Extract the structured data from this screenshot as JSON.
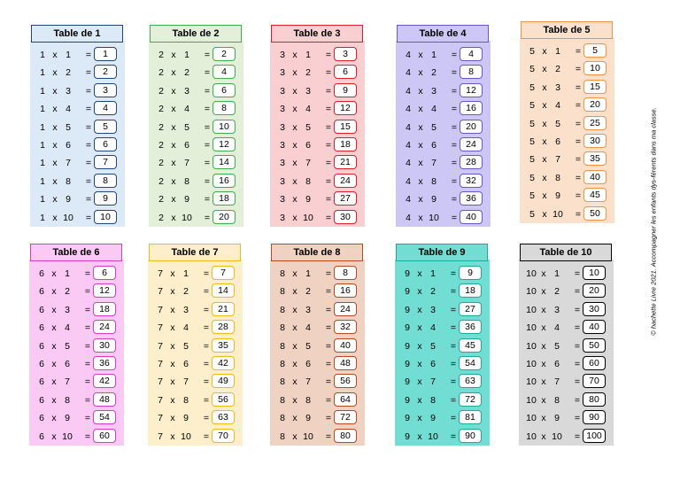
{
  "tables": [
    {
      "title": "Table de 1",
      "bg": "#dce9f6",
      "border": "#24427d",
      "headbg": "#dce9f6",
      "rows": [
        [
          "1",
          "1",
          "1"
        ],
        [
          "1",
          "2",
          "2"
        ],
        [
          "1",
          "3",
          "3"
        ],
        [
          "1",
          "4",
          "4"
        ],
        [
          "1",
          "5",
          "5"
        ],
        [
          "1",
          "6",
          "6"
        ],
        [
          "1",
          "7",
          "7"
        ],
        [
          "1",
          "8",
          "8"
        ],
        [
          "1",
          "9",
          "9"
        ],
        [
          "1",
          "10",
          "10"
        ]
      ]
    },
    {
      "title": "Table de 2",
      "bg": "#e3efd9",
      "border": "#3fae4a",
      "headbg": "#e3efd9",
      "rows": [
        [
          "2",
          "1",
          "2"
        ],
        [
          "2",
          "2",
          "4"
        ],
        [
          "2",
          "3",
          "6"
        ],
        [
          "2",
          "4",
          "8"
        ],
        [
          "2",
          "5",
          "10"
        ],
        [
          "2",
          "6",
          "12"
        ],
        [
          "2",
          "7",
          "14"
        ],
        [
          "2",
          "8",
          "16"
        ],
        [
          "2",
          "9",
          "18"
        ],
        [
          "2",
          "10",
          "20"
        ]
      ]
    },
    {
      "title": "Table de 3",
      "bg": "#f9cfd2",
      "border": "#e01b2b",
      "headbg": "#f9cfd2",
      "rows": [
        [
          "3",
          "1",
          "3"
        ],
        [
          "3",
          "2",
          "6"
        ],
        [
          "3",
          "3",
          "9"
        ],
        [
          "3",
          "4",
          "12"
        ],
        [
          "3",
          "5",
          "15"
        ],
        [
          "3",
          "6",
          "18"
        ],
        [
          "3",
          "7",
          "21"
        ],
        [
          "3",
          "8",
          "24"
        ],
        [
          "3",
          "9",
          "27"
        ],
        [
          "3",
          "10",
          "30"
        ]
      ]
    },
    {
      "title": "Table de 4",
      "bg": "#cdc7f5",
      "border": "#6a56c8",
      "headbg": "#cdc7f5",
      "rows": [
        [
          "4",
          "1",
          "4"
        ],
        [
          "4",
          "2",
          "8"
        ],
        [
          "4",
          "3",
          "12"
        ],
        [
          "4",
          "4",
          "16"
        ],
        [
          "4",
          "5",
          "20"
        ],
        [
          "4",
          "6",
          "24"
        ],
        [
          "4",
          "7",
          "28"
        ],
        [
          "4",
          "8",
          "32"
        ],
        [
          "4",
          "9",
          "36"
        ],
        [
          "4",
          "10",
          "40"
        ]
      ]
    },
    {
      "title": "Table de 5",
      "bg": "#fbe0cb",
      "border": "#f29247",
      "headbg": "#fbe0cb",
      "rows": [
        [
          "5",
          "1",
          "5"
        ],
        [
          "5",
          "2",
          "10"
        ],
        [
          "5",
          "3",
          "15"
        ],
        [
          "5",
          "4",
          "20"
        ],
        [
          "5",
          "5",
          "25"
        ],
        [
          "5",
          "6",
          "30"
        ],
        [
          "5",
          "7",
          "35"
        ],
        [
          "5",
          "8",
          "40"
        ],
        [
          "5",
          "9",
          "45"
        ],
        [
          "5",
          "10",
          "50"
        ]
      ]
    },
    {
      "title": "Table de 6",
      "bg": "#fac9f4",
      "border": "#d43ec2",
      "headbg": "#fac9f4",
      "rows": [
        [
          "6",
          "1",
          "6"
        ],
        [
          "6",
          "2",
          "12"
        ],
        [
          "6",
          "3",
          "18"
        ],
        [
          "6",
          "4",
          "24"
        ],
        [
          "6",
          "5",
          "30"
        ],
        [
          "6",
          "6",
          "36"
        ],
        [
          "6",
          "7",
          "42"
        ],
        [
          "6",
          "8",
          "48"
        ],
        [
          "6",
          "9",
          "54"
        ],
        [
          "6",
          "10",
          "60"
        ]
      ]
    },
    {
      "title": "Table de 7",
      "bg": "#fdefcb",
      "border": "#f1b81c",
      "headbg": "#fdefcb",
      "rows": [
        [
          "7",
          "1",
          "7"
        ],
        [
          "7",
          "2",
          "14"
        ],
        [
          "7",
          "3",
          "21"
        ],
        [
          "7",
          "4",
          "28"
        ],
        [
          "7",
          "5",
          "35"
        ],
        [
          "7",
          "6",
          "42"
        ],
        [
          "7",
          "7",
          "49"
        ],
        [
          "7",
          "8",
          "56"
        ],
        [
          "7",
          "9",
          "63"
        ],
        [
          "7",
          "10",
          "70"
        ]
      ]
    },
    {
      "title": "Table de 8",
      "bg": "#efd2c2",
      "border": "#b44a24",
      "headbg": "#efd2c2",
      "rows": [
        [
          "8",
          "1",
          "8"
        ],
        [
          "8",
          "2",
          "16"
        ],
        [
          "8",
          "3",
          "24"
        ],
        [
          "8",
          "4",
          "32"
        ],
        [
          "8",
          "5",
          "40"
        ],
        [
          "8",
          "6",
          "48"
        ],
        [
          "8",
          "7",
          "56"
        ],
        [
          "8",
          "8",
          "64"
        ],
        [
          "8",
          "9",
          "72"
        ],
        [
          "8",
          "10",
          "80"
        ]
      ]
    },
    {
      "title": "Table de 9",
      "bg": "#72ddd3",
      "border": "#1ea99b",
      "headbg": "#72ddd3",
      "rows": [
        [
          "9",
          "1",
          "9"
        ],
        [
          "9",
          "2",
          "18"
        ],
        [
          "9",
          "3",
          "27"
        ],
        [
          "9",
          "4",
          "36"
        ],
        [
          "9",
          "5",
          "45"
        ],
        [
          "9",
          "6",
          "54"
        ],
        [
          "9",
          "7",
          "63"
        ],
        [
          "9",
          "8",
          "72"
        ],
        [
          "9",
          "9",
          "81"
        ],
        [
          "9",
          "10",
          "90"
        ]
      ]
    },
    {
      "title": "Table de 10",
      "bg": "#d9d9d9",
      "border": "#000000",
      "headbg": "#d9d9d9",
      "rows": [
        [
          "10",
          "1",
          "10"
        ],
        [
          "10",
          "2",
          "20"
        ],
        [
          "10",
          "3",
          "30"
        ],
        [
          "10",
          "4",
          "40"
        ],
        [
          "10",
          "5",
          "50"
        ],
        [
          "10",
          "6",
          "60"
        ],
        [
          "10",
          "7",
          "70"
        ],
        [
          "10",
          "8",
          "80"
        ],
        [
          "10",
          "9",
          "90"
        ],
        [
          "10",
          "10",
          "100"
        ]
      ]
    }
  ],
  "symbols": {
    "times": "x",
    "equals": "="
  },
  "copyright": "© hachette Livre 2021. Accompagner les enfants dys-férents dans ma classe."
}
